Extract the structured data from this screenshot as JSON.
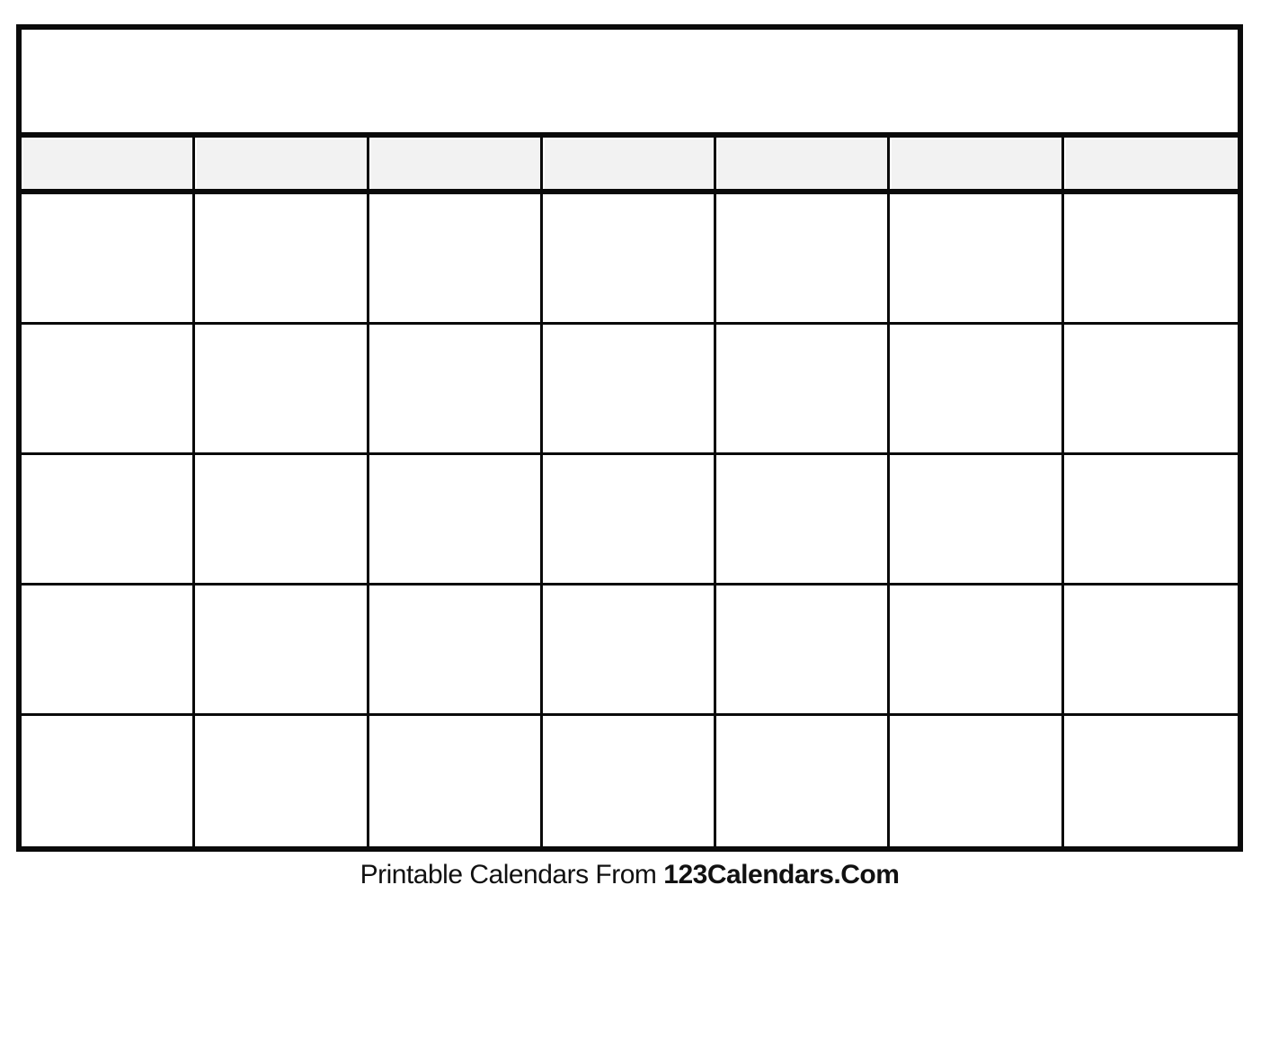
{
  "page": {
    "background": "#ffffff"
  },
  "calendar": {
    "columns": 7,
    "rows": 5,
    "line_color": "#0a0a0a",
    "day_header_fill": "#f2f2f2",
    "title_text": "",
    "day_header_labels": [
      "",
      "",
      "",
      "",
      "",
      "",
      ""
    ]
  },
  "footer": {
    "prefix": "Printable Calendars From ",
    "brand": "123Calendars.Com",
    "text_color": "#111111"
  }
}
